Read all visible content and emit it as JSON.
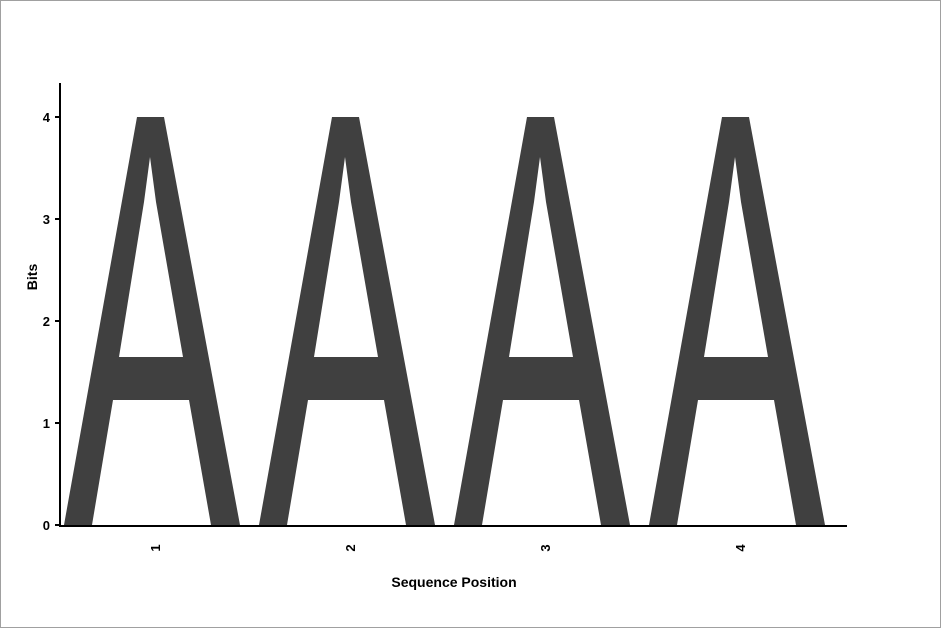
{
  "chart_data": {
    "type": "sequence-logo",
    "xlabel": "Sequence Position",
    "ylabel": "Bits",
    "ylim": [
      0,
      4
    ],
    "yticks": [
      0,
      1,
      2,
      3,
      4
    ],
    "categories": [
      "1",
      "2",
      "3",
      "4"
    ],
    "positions": [
      {
        "position": "1",
        "letter": "A",
        "bits": 4
      },
      {
        "position": "2",
        "letter": "A",
        "bits": 4
      },
      {
        "position": "3",
        "letter": "A",
        "bits": 4
      },
      {
        "position": "4",
        "letter": "A",
        "bits": 4
      }
    ],
    "letter_color": "#404040",
    "axis_color": "#000000"
  }
}
